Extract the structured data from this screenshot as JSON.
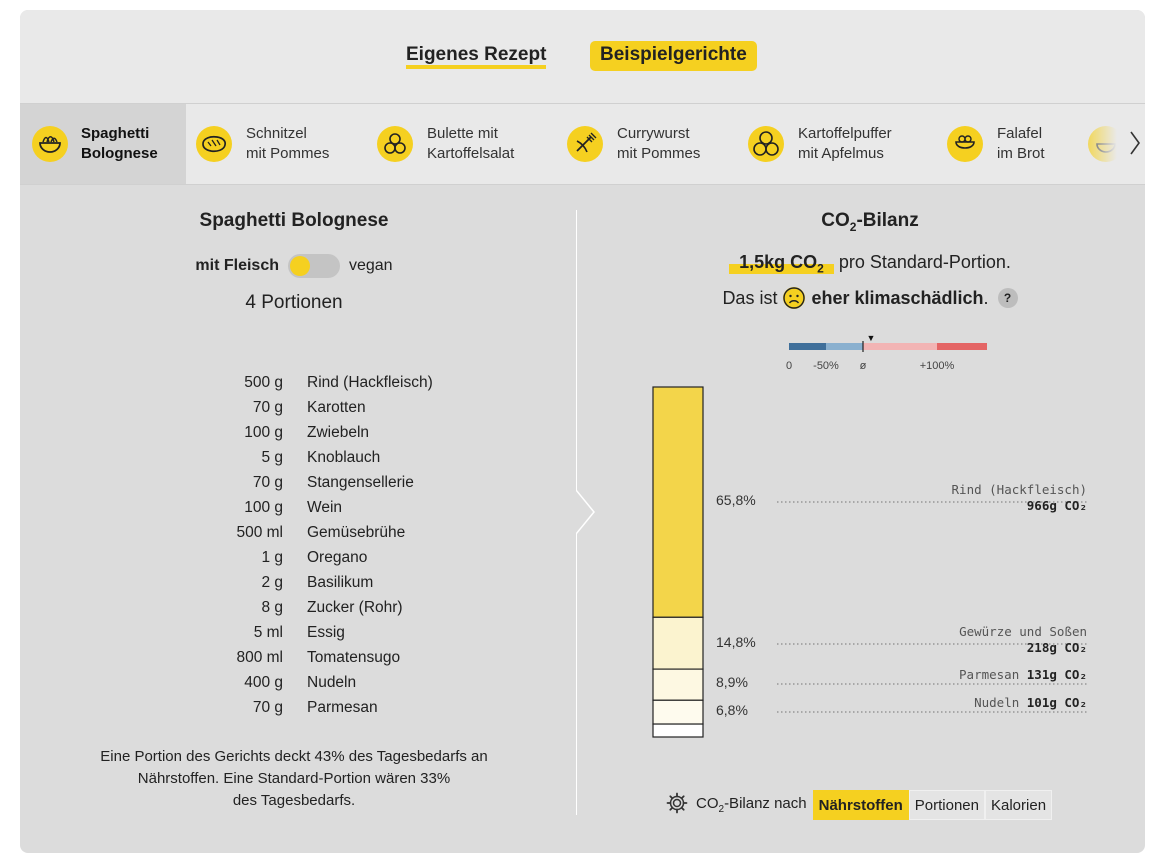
{
  "tabs": {
    "own_recipe": "Eigenes Rezept",
    "example_dishes": "Beispielgerichte"
  },
  "dishes": [
    {
      "line1": "Spaghetti",
      "line2": "Bolognese",
      "icon": "spaghetti-icon",
      "active": true
    },
    {
      "line1": "Schnitzel",
      "line2": "mit Pommes",
      "icon": "schnitzel-icon"
    },
    {
      "line1": "Bulette mit",
      "line2": "Kartoffelsalat",
      "icon": "meatball-icon"
    },
    {
      "line1": "Currywurst",
      "line2": "mit Pommes",
      "icon": "currywurst-icon"
    },
    {
      "line1": "Kartoffelpuffer",
      "line2": "mit Apfelmus",
      "icon": "potato-pancake-icon"
    },
    {
      "line1": "Falafel",
      "line2": "im Brot",
      "icon": "falafel-icon"
    }
  ],
  "recipe": {
    "title": "Spaghetti Bolognese",
    "toggle_meat": "mit Fleisch",
    "toggle_vegan": "vegan",
    "portions": "4 Portionen",
    "ingredients": [
      {
        "amount": "500 g",
        "name": "Rind (Hackfleisch)"
      },
      {
        "amount": "70 g",
        "name": "Karotten"
      },
      {
        "amount": "100 g",
        "name": "Zwiebeln"
      },
      {
        "amount": "5 g",
        "name": "Knoblauch"
      },
      {
        "amount": "70 g",
        "name": "Stangensellerie"
      },
      {
        "amount": "100 g",
        "name": "Wein"
      },
      {
        "amount": "500 ml",
        "name": "Gemüsebrühe"
      },
      {
        "amount": "1 g",
        "name": "Oregano"
      },
      {
        "amount": "2 g",
        "name": "Basilikum"
      },
      {
        "amount": "8 g",
        "name": "Zucker (Rohr)"
      },
      {
        "amount": "5 ml",
        "name": "Essig"
      },
      {
        "amount": "800 ml",
        "name": "Tomatensugo"
      },
      {
        "amount": "400 g",
        "name": "Nudeln"
      },
      {
        "amount": "70 g",
        "name": "Parmesan"
      }
    ],
    "note_line1": "Eine Portion des Gerichts deckt 43% des Tagesbedarfs an",
    "note_line2": "Nährstoffen. Eine Standard-Portion wären 33%",
    "note_line3": "des Tagesbedarfs."
  },
  "co2": {
    "title_prefix": "CO",
    "title_sub": "2",
    "title_suffix": "-Bilanz",
    "value_prefix": "1,5kg CO",
    "value_sub": "2",
    "per_portion": "pro Standard-Portion.",
    "rating_prefix": "Das ist",
    "rating_word": "eher klimaschädlich",
    "rating_suffix": ".",
    "help": "?",
    "scale": {
      "labels": [
        "0",
        "-50%",
        "ø",
        "+100%"
      ],
      "colors": [
        "#3f6f9a",
        "#8ab0cf",
        "#f2b4b4",
        "#e46565"
      ],
      "marker_label": "▼"
    },
    "segments": [
      {
        "pct": "65,8%",
        "category": "Rind (Hackfleisch)",
        "amount": "966g CO₂",
        "color": "#f3d54a"
      },
      {
        "pct": "14,8%",
        "category": "Gewürze und Soßen",
        "amount": "218g CO₂",
        "color": "#fbf3cf"
      },
      {
        "pct": "8,9%",
        "category": "Parmesan",
        "amount": "131g CO₂",
        "color": "#fdf8e2"
      },
      {
        "pct": "6,8%",
        "category": "Nudeln",
        "amount": "101g CO₂",
        "color": "#fefbee"
      },
      {
        "pct": "",
        "category": "",
        "amount": "",
        "color": "#ffffff"
      }
    ],
    "shares": [
      65.8,
      14.8,
      8.9,
      6.8,
      3.7
    ]
  },
  "view_switch": {
    "label_prefix": "CO",
    "label_sub": "2",
    "label_suffix": "-Bilanz nach",
    "options": [
      "Nährstoffen",
      "Portionen",
      "Kalorien"
    ],
    "active": 0
  }
}
